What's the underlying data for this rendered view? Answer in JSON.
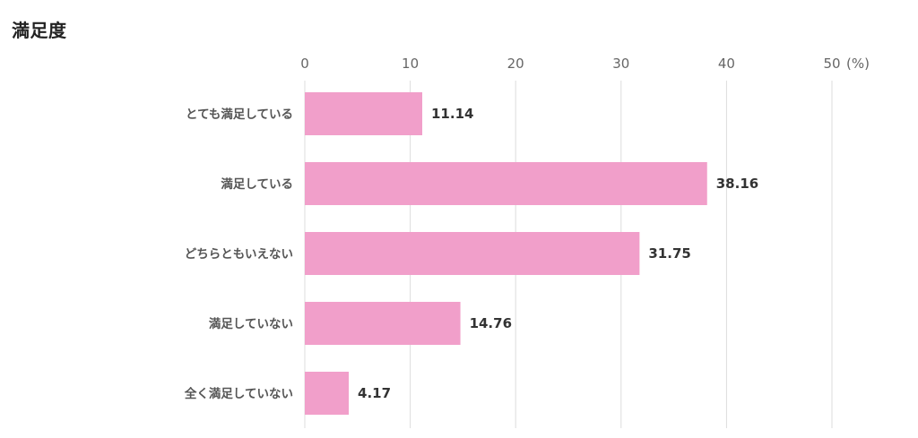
{
  "chart_data": {
    "type": "bar",
    "orientation": "horizontal",
    "title": "満足度",
    "unit": "(%)",
    "categories": [
      "とても満足している",
      "満足している",
      "どちらともいえない",
      "満足していない",
      "全く満足していない"
    ],
    "values": [
      11.14,
      38.16,
      31.75,
      14.76,
      4.17
    ],
    "value_labels": [
      "11.14",
      "38.16",
      "31.75",
      "14.76",
      "4.17"
    ],
    "xlim": [
      0,
      50
    ],
    "ticks": [
      0,
      10,
      20,
      30,
      40,
      50
    ],
    "tick_labels": [
      "0",
      "10",
      "20",
      "30",
      "40",
      "50"
    ],
    "axis_position": "top",
    "grid": true,
    "bar_color": "#f19fca",
    "grid_color": "#dddddd"
  }
}
